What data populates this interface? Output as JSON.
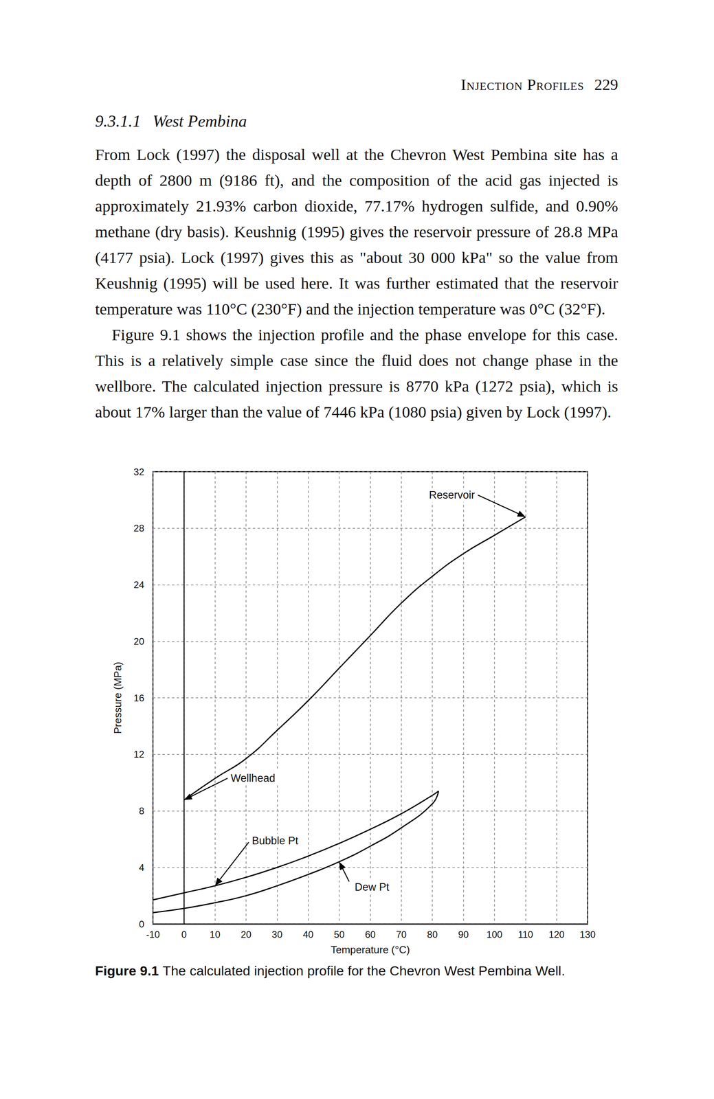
{
  "header": {
    "title": "Injection Profiles",
    "page": "229"
  },
  "section": {
    "number": "9.3.1.1",
    "title": "West Pembina"
  },
  "paragraphs": [
    "From Lock (1997) the disposal well at the Chevron West Pembina site has a depth of 2800 m (9186 ft), and the composition of the acid gas injected is approximately 21.93% carbon dioxide, 77.17% hydrogen sulfide, and 0.90% methane (dry basis). Keushnig (1995) gives the reservoir pressure of 28.8 MPa (4177 psia). Lock (1997) gives this as \"about 30 000 kPa\" so the value from Keushnig (1995) will be used here. It was further estimated that the reservoir temperature was 110°C (230°F) and the injection temperature was 0°C (32°F).",
    "Figure 9.1 shows the injection profile and the phase envelope for this case. This is a relatively simple case since the fluid does not change phase in the wellbore. The calculated injection pressure is 8770 kPa (1272 psia), which is about 17% larger than the value of 7446 kPa (1080 psia) given by Lock (1997)."
  ],
  "chart_data": {
    "type": "line",
    "x_label": "Temperature (°C)",
    "y_label": "Pressure (MPa)",
    "xlim": [
      -10,
      130
    ],
    "xticks": [
      -10,
      0,
      10,
      20,
      30,
      40,
      50,
      60,
      70,
      80,
      90,
      100,
      110,
      120,
      130
    ],
    "ylim": [
      0,
      32
    ],
    "yticks": [
      0,
      4,
      8,
      12,
      16,
      20,
      24,
      28,
      32
    ],
    "grid": true,
    "series": [
      {
        "color": "#000000",
        "x": [
          0,
          10,
          20,
          30,
          40,
          50,
          60,
          70,
          80,
          90,
          100,
          110
        ],
        "values": [
          8.77,
          10.3,
          11.7,
          13.7,
          15.8,
          18.1,
          20.4,
          22.7,
          24.6,
          26.2,
          27.5,
          28.8
        ]
      },
      {
        "color": "#000000",
        "x": [
          -10,
          0,
          10,
          20,
          30,
          40,
          50,
          60,
          70,
          80,
          82
        ],
        "values": [
          1.7,
          2.2,
          2.7,
          3.3,
          4.0,
          4.8,
          5.7,
          6.7,
          7.8,
          9.1,
          9.4
        ]
      },
      {
        "color": "#000000",
        "x": [
          -10,
          0,
          10,
          20,
          30,
          40,
          50,
          60,
          70,
          80,
          82
        ],
        "values": [
          0.8,
          1.1,
          1.5,
          2.0,
          2.7,
          3.5,
          4.4,
          5.5,
          6.8,
          8.5,
          9.4
        ]
      }
    ],
    "annotations": [
      {
        "text": "Reservoir",
        "x": 110,
        "y": 28.8
      },
      {
        "text": "Wellhead",
        "x": 0,
        "y": 8.77
      },
      {
        "text": "Bubble Pt",
        "x": 10,
        "y": 2.7
      },
      {
        "text": "Dew Pt",
        "x": 50,
        "y": 4.4
      }
    ]
  },
  "caption": {
    "label": "Figure 9.1",
    "text": "The calculated injection profile for the Chevron West Pembina Well."
  }
}
